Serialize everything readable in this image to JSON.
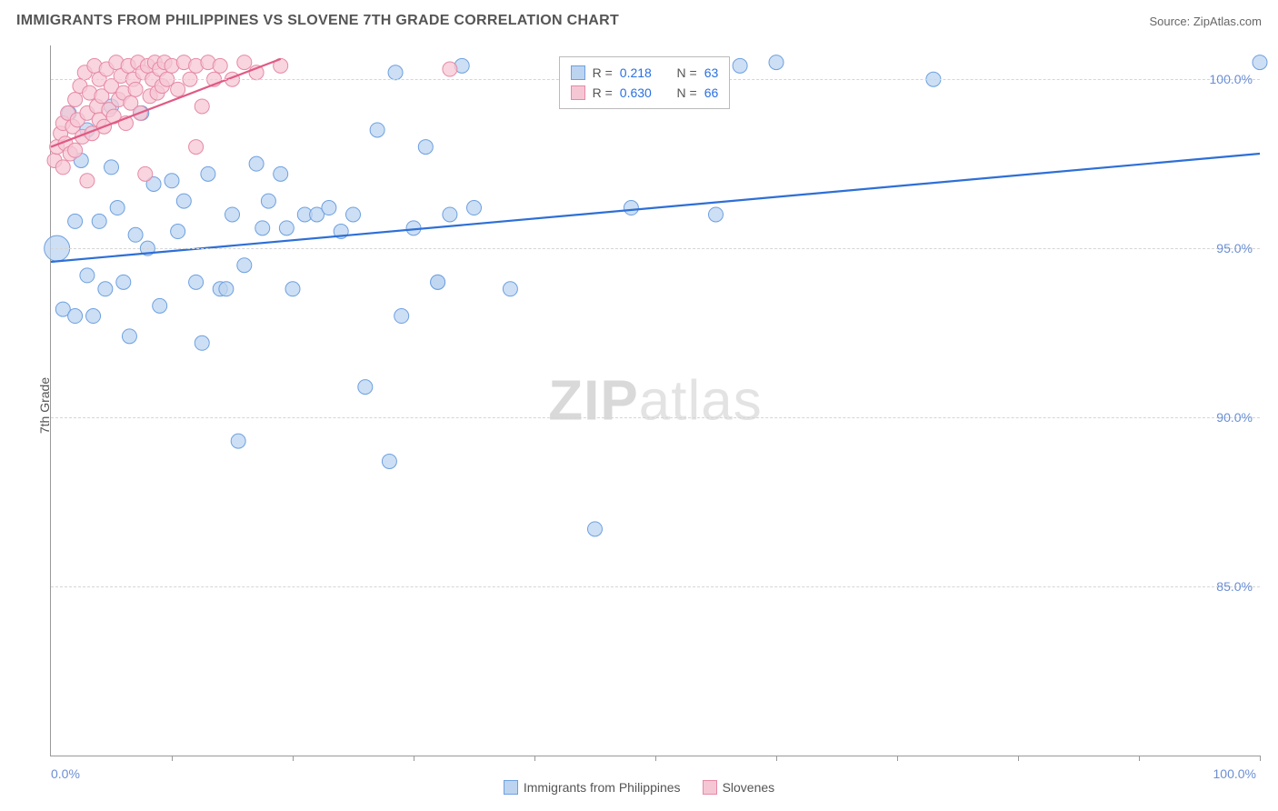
{
  "title": "IMMIGRANTS FROM PHILIPPINES VS SLOVENE 7TH GRADE CORRELATION CHART",
  "source_prefix": "Source: ",
  "source_name": "ZipAtlas.com",
  "ylabel": "7th Grade",
  "watermark_bold": "ZIP",
  "watermark_rest": "atlas",
  "plot": {
    "xlim": [
      0,
      100
    ],
    "ylim": [
      80,
      101
    ],
    "x_min_label": "0.0%",
    "x_max_label": "100.0%",
    "x_tick_positions": [
      10,
      20,
      30,
      40,
      50,
      60,
      70,
      80,
      90,
      100
    ],
    "y_gridlines": [
      {
        "value": 85,
        "label": "85.0%"
      },
      {
        "value": 90,
        "label": "90.0%"
      },
      {
        "value": 95,
        "label": "95.0%"
      },
      {
        "value": 100,
        "label": "100.0%"
      }
    ],
    "grid_color": "#d5d5d5",
    "axis_color": "#999999",
    "background": "#ffffff"
  },
  "stats_box": {
    "left_pct": 42,
    "top_pct": 1.5,
    "rows": [
      {
        "swatch_fill": "#bcd4f0",
        "swatch_stroke": "#6da0e0",
        "r_label": "R =",
        "r": "0.218",
        "n_label": "N =",
        "n": "63"
      },
      {
        "swatch_fill": "#f5c7d4",
        "swatch_stroke": "#e68aa6",
        "r_label": "R =",
        "r": "0.630",
        "n_label": "N =",
        "n": "66"
      }
    ]
  },
  "bottom_legend": [
    {
      "swatch_fill": "#bcd4f0",
      "swatch_stroke": "#6da0e0",
      "label": "Immigrants from Philippines"
    },
    {
      "swatch_fill": "#f5c7d4",
      "swatch_stroke": "#e68aa6",
      "label": "Slovenes"
    }
  ],
  "series": [
    {
      "name": "philippines",
      "marker_fill": "#bcd4f0",
      "marker_stroke": "#6da0e0",
      "marker_r": 8,
      "marker_opacity": 0.75,
      "trend": {
        "x1": 0,
        "y1": 94.6,
        "x2": 100,
        "y2": 97.8,
        "stroke": "#2e6fd6",
        "width": 2.2
      },
      "points": [
        [
          0.5,
          95.0,
          14
        ],
        [
          1,
          93.2
        ],
        [
          1.5,
          99.0
        ],
        [
          2,
          95.8
        ],
        [
          2,
          93.0
        ],
        [
          2.5,
          97.6
        ],
        [
          3,
          94.2
        ],
        [
          3,
          98.5
        ],
        [
          3.5,
          93.0
        ],
        [
          4,
          95.8
        ],
        [
          4.5,
          93.8
        ],
        [
          5,
          97.4
        ],
        [
          5,
          99.2
        ],
        [
          5.5,
          96.2
        ],
        [
          6,
          94.0
        ],
        [
          6.5,
          92.4
        ],
        [
          7,
          95.4
        ],
        [
          7.5,
          99.0
        ],
        [
          8,
          95.0
        ],
        [
          8.5,
          96.9
        ],
        [
          9,
          93.3
        ],
        [
          10,
          97.0
        ],
        [
          10.5,
          95.5
        ],
        [
          11,
          96.4
        ],
        [
          12,
          94.0
        ],
        [
          12.5,
          92.2
        ],
        [
          13,
          97.2
        ],
        [
          14,
          93.8
        ],
        [
          14.5,
          93.8
        ],
        [
          15,
          96.0
        ],
        [
          15.5,
          89.3
        ],
        [
          16,
          94.5
        ],
        [
          17,
          97.5
        ],
        [
          17.5,
          95.6
        ],
        [
          18,
          96.4
        ],
        [
          19,
          97.2
        ],
        [
          19.5,
          95.6
        ],
        [
          20,
          93.8
        ],
        [
          21,
          96.0
        ],
        [
          22,
          96.0
        ],
        [
          23,
          96.2
        ],
        [
          24,
          95.5
        ],
        [
          25,
          96.0
        ],
        [
          26,
          90.9
        ],
        [
          27,
          98.5
        ],
        [
          28,
          88.7
        ],
        [
          28.5,
          100.2
        ],
        [
          29,
          93.0
        ],
        [
          30,
          95.6
        ],
        [
          31,
          98.0
        ],
        [
          32,
          94.0
        ],
        [
          32,
          94.0
        ],
        [
          33,
          96.0
        ],
        [
          34,
          100.4
        ],
        [
          35,
          96.2
        ],
        [
          38,
          93.8
        ],
        [
          45,
          86.7
        ],
        [
          48,
          96.2
        ],
        [
          55,
          96.0
        ],
        [
          57,
          100.4
        ],
        [
          60,
          100.5
        ],
        [
          73,
          100.0
        ],
        [
          100,
          100.5
        ]
      ]
    },
    {
      "name": "slovenes",
      "marker_fill": "#f5c7d4",
      "marker_stroke": "#e68aa6",
      "marker_r": 8,
      "marker_opacity": 0.75,
      "trend": {
        "x1": 0,
        "y1": 98.0,
        "x2": 19,
        "y2": 100.6,
        "stroke": "#e05a84",
        "width": 2.2
      },
      "points": [
        [
          0.3,
          97.6
        ],
        [
          0.5,
          98.0
        ],
        [
          0.8,
          98.4
        ],
        [
          1,
          97.4
        ],
        [
          1,
          98.7
        ],
        [
          1.2,
          98.1
        ],
        [
          1.4,
          99.0
        ],
        [
          1.6,
          97.8
        ],
        [
          1.8,
          98.6
        ],
        [
          2,
          99.4
        ],
        [
          2,
          97.9
        ],
        [
          2.2,
          98.8
        ],
        [
          2.4,
          99.8
        ],
        [
          2.6,
          98.3
        ],
        [
          2.8,
          100.2
        ],
        [
          3,
          99.0
        ],
        [
          3,
          97.0
        ],
        [
          3.2,
          99.6
        ],
        [
          3.4,
          98.4
        ],
        [
          3.6,
          100.4
        ],
        [
          3.8,
          99.2
        ],
        [
          4,
          98.8
        ],
        [
          4,
          100.0
        ],
        [
          4.2,
          99.5
        ],
        [
          4.4,
          98.6
        ],
        [
          4.6,
          100.3
        ],
        [
          4.8,
          99.1
        ],
        [
          5,
          99.8
        ],
        [
          5.2,
          98.9
        ],
        [
          5.4,
          100.5
        ],
        [
          5.6,
          99.4
        ],
        [
          5.8,
          100.1
        ],
        [
          6,
          99.6
        ],
        [
          6.2,
          98.7
        ],
        [
          6.4,
          100.4
        ],
        [
          6.6,
          99.3
        ],
        [
          6.8,
          100.0
        ],
        [
          7,
          99.7
        ],
        [
          7.2,
          100.5
        ],
        [
          7.4,
          99.0
        ],
        [
          7.6,
          100.2
        ],
        [
          7.8,
          97.2
        ],
        [
          8,
          100.4
        ],
        [
          8.2,
          99.5
        ],
        [
          8.4,
          100.0
        ],
        [
          8.6,
          100.5
        ],
        [
          8.8,
          99.6
        ],
        [
          9,
          100.3
        ],
        [
          9.2,
          99.8
        ],
        [
          9.4,
          100.5
        ],
        [
          9.6,
          100.0
        ],
        [
          10,
          100.4
        ],
        [
          10.5,
          99.7
        ],
        [
          11,
          100.5
        ],
        [
          11.5,
          100.0
        ],
        [
          12,
          100.4
        ],
        [
          12,
          98.0
        ],
        [
          12.5,
          99.2
        ],
        [
          13,
          100.5
        ],
        [
          13.5,
          100.0
        ],
        [
          14,
          100.4
        ],
        [
          15,
          100.0
        ],
        [
          16,
          100.5
        ],
        [
          17,
          100.2
        ],
        [
          19,
          100.4
        ],
        [
          33,
          100.3
        ]
      ]
    }
  ]
}
